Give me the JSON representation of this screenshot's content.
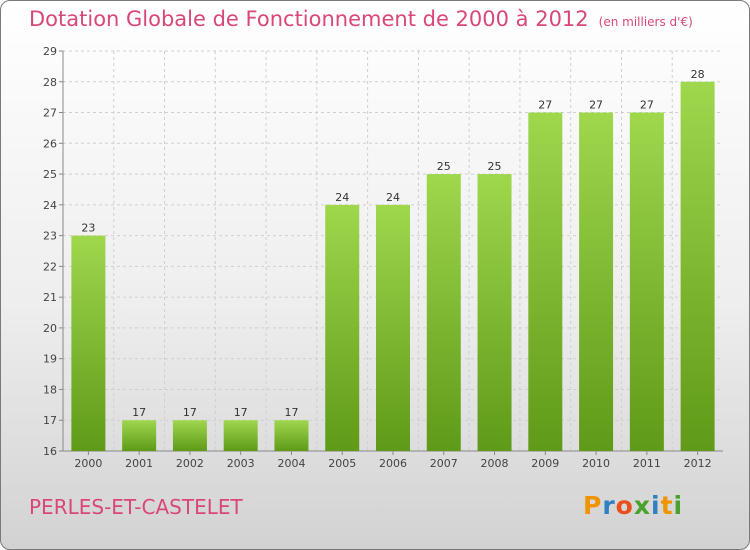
{
  "header": {
    "title": "Dotation Globale de Fonctionnement de 2000 à 2012",
    "unit": "(en milliers d'€)"
  },
  "footer": {
    "place": "PERLES-ET-CASTELET",
    "logo": {
      "letters": [
        "P",
        "r",
        "o",
        "x",
        "i",
        "t",
        "i"
      ]
    }
  },
  "colors": {
    "accent": "#d9477a",
    "bar_top": "#9fd74d",
    "bar_bottom": "#5f9a18"
  },
  "chart_data": {
    "type": "bar",
    "title": "Dotation Globale de Fonctionnement de 2000 à 2012",
    "subtitle": "(en milliers d'€)",
    "categories": [
      "2000",
      "2001",
      "2002",
      "2003",
      "2004",
      "2005",
      "2006",
      "2007",
      "2008",
      "2009",
      "2010",
      "2011",
      "2012"
    ],
    "values": [
      23,
      17,
      17,
      17,
      17,
      24,
      24,
      25,
      25,
      27,
      27,
      27,
      28
    ],
    "ylim": [
      16,
      29
    ],
    "yticks": [
      16,
      17,
      18,
      19,
      20,
      21,
      22,
      23,
      24,
      25,
      26,
      27,
      28,
      29
    ],
    "grid": true,
    "legend": "none"
  }
}
